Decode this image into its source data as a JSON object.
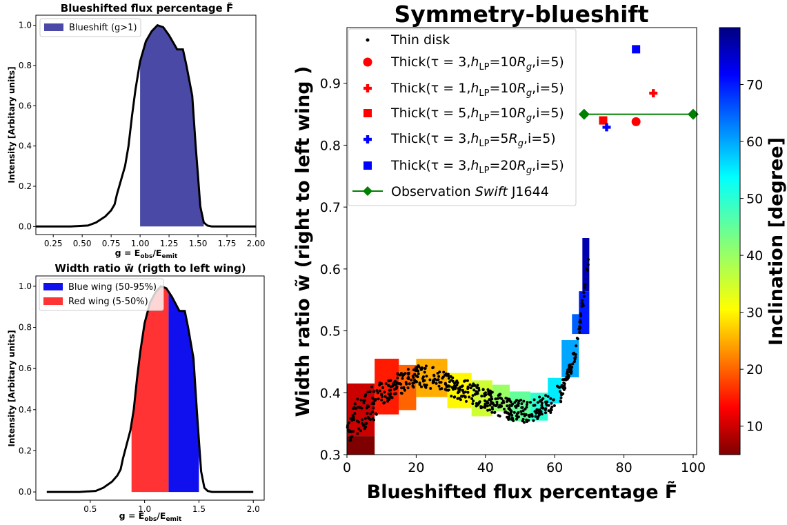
{
  "chart_data": [
    {
      "type": "area",
      "title": "Blueshifted flux percentage F̃",
      "xlabel": "g = E_obs/E_emit",
      "ylabel": "Intensity [Arbitary units]",
      "xlim": [
        0.1,
        2.0
      ],
      "ylim": [
        -0.04,
        1.05
      ],
      "xticks": [
        "0.25",
        "0.50",
        "0.75",
        "1.00",
        "1.25",
        "1.50",
        "1.75",
        "2.00"
      ],
      "xtick_values": [
        0.25,
        0.5,
        0.75,
        1.0,
        1.25,
        1.5,
        1.75,
        2.0
      ],
      "yticks": [
        "0.0",
        "0.2",
        "0.4",
        "0.6",
        "0.8",
        "1.0"
      ],
      "ytick_values": [
        0.0,
        0.2,
        0.4,
        0.6,
        0.8,
        1.0
      ],
      "legend_position": "top-left",
      "line": {
        "x": [
          0.1,
          0.4,
          0.55,
          0.62,
          0.7,
          0.75,
          0.78,
          0.8,
          0.83,
          0.87,
          0.9,
          0.93,
          0.96,
          1.0,
          1.05,
          1.1,
          1.15,
          1.2,
          1.25,
          1.3,
          1.32,
          1.35,
          1.37,
          1.4,
          1.45,
          1.48,
          1.5,
          1.52,
          1.55,
          1.58,
          1.62,
          2.0
        ],
        "y": [
          0,
          0,
          0.005,
          0.02,
          0.05,
          0.08,
          0.11,
          0.16,
          0.22,
          0.3,
          0.4,
          0.55,
          0.68,
          0.82,
          0.92,
          0.97,
          1.0,
          0.99,
          0.95,
          0.9,
          0.88,
          0.88,
          0.88,
          0.8,
          0.65,
          0.4,
          0.25,
          0.1,
          0.02,
          0.005,
          0,
          0
        ]
      },
      "filled_regions": [
        {
          "name": "Blueshift (g>1)",
          "from": 1.0,
          "to": 1.55,
          "color": "#4a4aa6"
        }
      ]
    },
    {
      "type": "area",
      "title": "Width ratio w̃ (rigth to left wing)",
      "xlabel": "g = E_obs/E_emit",
      "ylabel": "Intensity [Arbitary units]",
      "xlim": [
        0.0,
        2.1
      ],
      "ylim": [
        -0.04,
        1.05
      ],
      "xticks": [
        "0.5",
        "1.0",
        "1.5",
        "2.0"
      ],
      "xtick_values": [
        0.5,
        1.0,
        1.5,
        2.0
      ],
      "yticks": [
        "0.0",
        "0.2",
        "0.4",
        "0.6",
        "0.8",
        "1.0"
      ],
      "ytick_values": [
        0.0,
        0.2,
        0.4,
        0.6,
        0.8,
        1.0
      ],
      "legend_position": "top-left",
      "line": {
        "x": [
          0.1,
          0.4,
          0.55,
          0.62,
          0.7,
          0.75,
          0.78,
          0.8,
          0.83,
          0.87,
          0.9,
          0.93,
          0.96,
          1.0,
          1.05,
          1.1,
          1.15,
          1.2,
          1.25,
          1.3,
          1.32,
          1.35,
          1.37,
          1.4,
          1.45,
          1.48,
          1.5,
          1.52,
          1.55,
          1.58,
          1.62,
          2.0
        ],
        "y": [
          0,
          0,
          0.005,
          0.02,
          0.05,
          0.08,
          0.11,
          0.16,
          0.22,
          0.3,
          0.4,
          0.55,
          0.68,
          0.82,
          0.92,
          0.97,
          1.0,
          0.99,
          0.95,
          0.9,
          0.88,
          0.88,
          0.88,
          0.8,
          0.65,
          0.4,
          0.25,
          0.1,
          0.02,
          0.005,
          0,
          0
        ]
      },
      "filled_regions": [
        {
          "name": "Blue wing (50-95%)",
          "from": 1.22,
          "to": 1.5,
          "color": "#1010ee"
        },
        {
          "name": "Red wing (5-50%)",
          "from": 0.88,
          "to": 1.22,
          "color": "#ff3333"
        }
      ]
    },
    {
      "type": "scatter",
      "title": "Symmetry-blueshift",
      "xlabel": "Blueshifted flux percentage F̃",
      "ylabel": "Width ratio w̃ (right to left wing )",
      "xlim": [
        0,
        101
      ],
      "ylim": [
        0.3,
        0.99
      ],
      "xticks": [
        "0",
        "20",
        "40",
        "60",
        "80",
        "100"
      ],
      "xtick_values": [
        0,
        20,
        40,
        60,
        80,
        100
      ],
      "yticks": [
        "0.3",
        "0.4",
        "0.5",
        "0.6",
        "0.7",
        "0.8",
        "0.9"
      ],
      "ytick_values": [
        0.3,
        0.4,
        0.5,
        0.6,
        0.7,
        0.8,
        0.9
      ],
      "legend_position": "top-left",
      "colorbar": {
        "label": "Inclination [degree]",
        "range": [
          5,
          80
        ],
        "colormap": "jet_r",
        "ticks": [
          "10",
          "20",
          "30",
          "40",
          "50",
          "60",
          "70"
        ],
        "tick_values": [
          10,
          20,
          30,
          40,
          50,
          60,
          70
        ]
      },
      "heat_cells": [
        {
          "x": [
            0,
            8
          ],
          "y": [
            0.3,
            0.33
          ],
          "inc": 5
        },
        {
          "x": [
            0,
            8
          ],
          "y": [
            0.33,
            0.415
          ],
          "inc": 10
        },
        {
          "x": [
            8,
            15
          ],
          "y": [
            0.365,
            0.455
          ],
          "inc": 15
        },
        {
          "x": [
            15,
            20
          ],
          "y": [
            0.372,
            0.445
          ],
          "inc": 20
        },
        {
          "x": [
            20,
            29
          ],
          "y": [
            0.393,
            0.455
          ],
          "inc": 25
        },
        {
          "x": [
            29,
            36
          ],
          "y": [
            0.375,
            0.432
          ],
          "inc": 30
        },
        {
          "x": [
            36,
            42
          ],
          "y": [
            0.362,
            0.42
          ],
          "inc": 35
        },
        {
          "x": [
            42,
            47
          ],
          "y": [
            0.37,
            0.413
          ],
          "inc": 40
        },
        {
          "x": [
            47,
            53
          ],
          "y": [
            0.354,
            0.402
          ],
          "inc": 45
        },
        {
          "x": [
            53,
            58
          ],
          "y": [
            0.355,
            0.4
          ],
          "inc": 50
        },
        {
          "x": [
            58,
            62
          ],
          "y": [
            0.383,
            0.424
          ],
          "inc": 55
        },
        {
          "x": [
            62,
            67
          ],
          "y": [
            0.425,
            0.485
          ],
          "inc": 60
        },
        {
          "x": [
            65,
            69
          ],
          "y": [
            0.495,
            0.527
          ],
          "inc": 65
        },
        {
          "x": [
            67,
            70
          ],
          "y": [
            0.495,
            0.564
          ],
          "inc": 70
        },
        {
          "x": [
            68,
            70
          ],
          "y": [
            0.564,
            0.65
          ],
          "inc": 77
        }
      ],
      "thin_disk_curve": {
        "x": [
          0,
          3,
          6,
          9,
          12,
          15,
          18,
          21,
          24,
          27,
          30,
          33,
          36,
          39,
          42,
          45,
          48,
          51,
          54,
          57,
          60,
          62,
          64,
          66,
          67,
          68,
          69,
          70
        ],
        "y": [
          0.345,
          0.36,
          0.375,
          0.39,
          0.405,
          0.415,
          0.422,
          0.428,
          0.425,
          0.42,
          0.412,
          0.405,
          0.4,
          0.392,
          0.385,
          0.378,
          0.372,
          0.37,
          0.372,
          0.378,
          0.39,
          0.405,
          0.43,
          0.465,
          0.5,
          0.54,
          0.58,
          0.62
        ]
      },
      "series": [
        {
          "name": "Thin disk",
          "marker": "dot",
          "color": "#000000"
        },
        {
          "name": "Thick(τ = 3,h_LP=10R_g,i=5)",
          "marker": "circle",
          "color": "#ff0000",
          "points": [
            [
              83.5,
              0.838
            ]
          ]
        },
        {
          "name": "Thick(τ = 1,h_LP=10R_g,i=5)",
          "marker": "plus",
          "color": "#ff0000",
          "points": [
            [
              88.5,
              0.884
            ]
          ]
        },
        {
          "name": "Thick(τ = 5,h_LP=10R_g,i=5)",
          "marker": "square",
          "color": "#ff0000",
          "points": [
            [
              74,
              0.84
            ]
          ]
        },
        {
          "name": "Thick(τ = 3,h_LP=5R_g,i=5)",
          "marker": "plus",
          "color": "#0000ff",
          "points": [
            [
              75,
              0.829
            ]
          ]
        },
        {
          "name": "Thick(τ = 3,h_LP=20R_g,i=5)",
          "marker": "square",
          "color": "#0000ff",
          "points": [
            [
              83.5,
              0.955
            ]
          ]
        },
        {
          "name": "Observation Swift J1644",
          "marker": "diamond-line",
          "color": "#008000",
          "points": [
            [
              68.5,
              0.85
            ],
            [
              100,
              0.85
            ]
          ]
        }
      ]
    }
  ],
  "labels": {
    "p1_title": "Blueshifted flux percentage F̃",
    "p1_xlabel_main": "g = E",
    "p1_xlabel_sub1": "obs",
    "p1_xlabel_mid": "/E",
    "p1_xlabel_sub2": "emit",
    "p1_ylabel": "Intensity [Arbitary units]",
    "p1_legend": "Blueshift (g>1)",
    "p2_title": "Width ratio w̃ (rigth to left wing)",
    "p2_xlabel_main": "g = E",
    "p2_xlabel_sub1": "obs",
    "p2_xlabel_mid": "/E",
    "p2_xlabel_sub2": "emit",
    "p2_ylabel": "Intensity [Arbitary units]",
    "p2_legend_blue": "Blue wing (50-95%)",
    "p2_legend_red": "Red wing (5-50%)",
    "p3_title": "Symmetry-blueshift",
    "p3_xlabel": "Blueshifted flux percentage F̃",
    "p3_ylabel": "Width ratio w̃ (right to left wing )",
    "p3_cbar_label": "Inclination [degree]",
    "leg_thin": "Thin disk",
    "leg_a_pre": "Thick(τ = 3,",
    "leg_a_post": "=10",
    "leg_a_end": ",i=5)",
    "leg_b_pre": "Thick(τ = 1,",
    "leg_b_post": "=10",
    "leg_b_end": ",i=5)",
    "leg_c_pre": "Thick(τ = 5,",
    "leg_c_post": "=10",
    "leg_c_end": ",i=5)",
    "leg_d_pre": "Thick(τ = 3,",
    "leg_d_post": "=5",
    "leg_d_end": ",i=5)",
    "leg_e_pre": "Thick(τ = 3,",
    "leg_e_post": "=20",
    "leg_e_end": ",i=5)",
    "leg_h": "h",
    "leg_lp": "LP",
    "leg_R": "R",
    "leg_g": "g",
    "leg_obs_pre": "Observation ",
    "leg_obs_it": "Swift",
    "leg_obs_end": " J1644"
  }
}
